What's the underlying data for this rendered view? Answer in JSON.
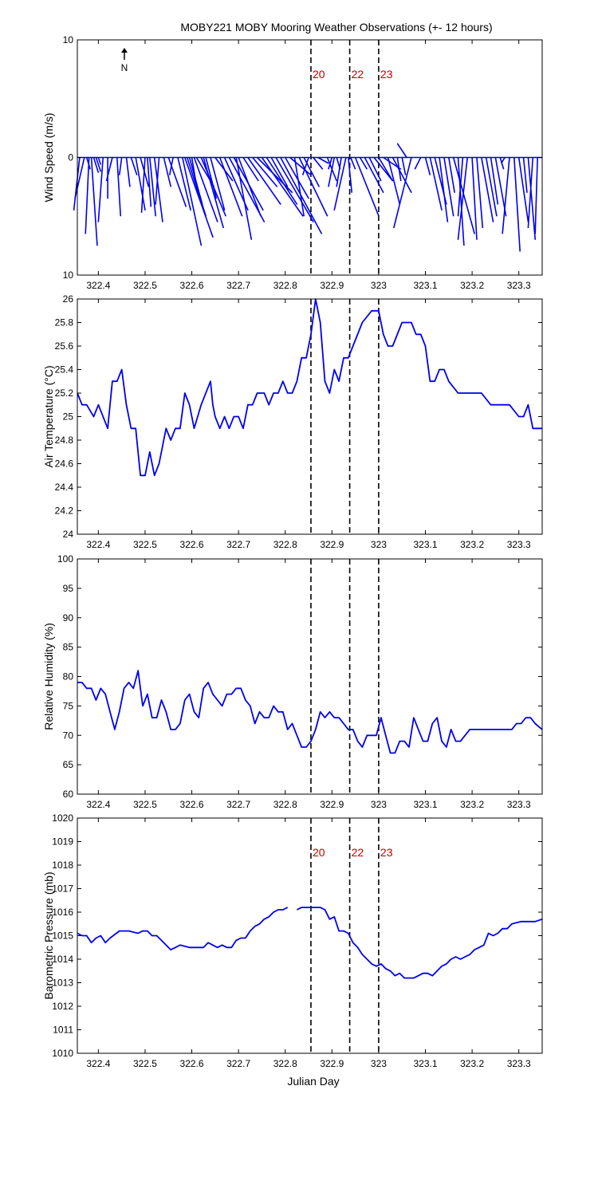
{
  "title": "MOBY221 MOBY Mooring Weather Observations (+- 12 hours)",
  "north_label": "N",
  "xlabel": "Julian Day",
  "colors": {
    "series": "#0000ee",
    "marker_text": "#cc0000",
    "axes": "#000000"
  },
  "xlim": [
    322.355,
    323.35
  ],
  "x_ticks": [
    322.4,
    322.5,
    322.6,
    322.7,
    322.8,
    322.9,
    323,
    323.1,
    323.2,
    323.3
  ],
  "x_tick_labels": [
    "322.4",
    "322.5",
    "322.6",
    "322.7",
    "322.8",
    "322.9",
    "323",
    "323.1",
    "323.2",
    "323.3"
  ],
  "markers": [
    {
      "x": 322.855,
      "label": "20"
    },
    {
      "x": 322.938,
      "label": "22"
    },
    {
      "x": 323.0,
      "label": "23"
    }
  ],
  "chart_data": [
    {
      "type": "line",
      "variant": "wind-stick",
      "ylabel": "Wind Speed (m/s)",
      "ylim": [
        -10,
        10
      ],
      "y_ticks": [
        -10,
        0,
        10
      ],
      "y_tick_labels": [
        "10",
        "0",
        "10"
      ],
      "show_markers": true,
      "x": [
        322.36,
        322.37,
        322.375,
        322.38,
        322.385,
        322.39,
        322.395,
        322.4,
        322.41,
        322.42,
        322.43,
        322.44,
        322.45,
        322.46,
        322.47,
        322.48,
        322.49,
        322.5,
        322.505,
        322.51,
        322.52,
        322.53,
        322.54,
        322.55,
        322.56,
        322.57,
        322.58,
        322.585,
        322.59,
        322.595,
        322.6,
        322.605,
        322.61,
        322.62,
        322.625,
        322.63,
        322.64,
        322.65,
        322.66,
        322.67,
        322.68,
        322.69,
        322.695,
        322.7,
        322.71,
        322.72,
        322.73,
        322.74,
        322.75,
        322.76,
        322.77,
        322.78,
        322.79,
        322.8,
        322.81,
        322.82,
        322.83,
        322.84,
        322.85,
        322.86,
        322.87,
        322.89,
        322.9,
        322.905,
        322.91,
        322.92,
        322.93,
        322.935,
        322.94,
        322.95,
        322.96,
        322.97,
        322.98,
        322.99,
        323.0,
        323.01,
        323.02,
        323.03,
        323.04,
        323.05,
        323.06,
        323.07,
        323.09,
        323.1,
        323.11,
        323.12,
        323.13,
        323.14,
        323.15,
        323.16,
        323.17,
        323.18,
        323.19,
        323.2,
        323.21,
        323.22,
        323.23,
        323.24,
        323.25,
        323.26,
        323.27,
        323.28,
        323.29,
        323.3,
        323.31,
        323.32,
        323.33,
        323.34
      ],
      "u": [
        -0.5,
        -0.8,
        0.3,
        -0.3,
        0.5,
        0.4,
        0.4,
        0.2,
        -0.4,
        0.0,
        -0.5,
        0.3,
        -0.2,
        0.3,
        0.5,
        0.8,
        0.7,
        -0.3,
        0.3,
        0.5,
        0.7,
        -0.3,
        0.6,
        1.5,
        -0.3,
        1.1,
        1.6,
        2.4,
        1.6,
        1.1,
        0.5,
        2.0,
        1.5,
        2.1,
        1.7,
        0.9,
        1.2,
        1.5,
        1.9,
        2.0,
        3.0,
        2.5,
        1.3,
        1.9,
        1.3,
        2.8,
        2.1,
        3.0,
        3.5,
        2.6,
        1.4,
        3.2,
        3.5,
        2.0,
        1.8,
        0.8,
        2.4,
        1.3,
        -0.5,
        0.8,
        0.9,
        0.8,
        -0.3,
        -0.5,
        0.3,
        -0.4,
        -1.0,
        0.3,
        0.4,
        2.0,
        0.6,
        1.6,
        1.0,
        1.6,
        1.2,
        1.5,
        1.0,
        1.6,
        0.3,
        0.3,
        -0.8,
        -1.5,
        -0.5,
        0.4,
        1.0,
        1.0,
        0.7,
        0.8,
        0.5,
        1.8,
        0.5,
        -0.4,
        -0.8,
        0.4,
        0.5,
        1.0,
        0.9,
        0.6,
        0.9,
        0.3,
        -0.3,
        -0.6,
        0.5,
        0.8,
        0.3,
        0.6,
        -0.4,
        -0.2
      ],
      "v": [
        -4.5,
        -3.5,
        -1.0,
        -6.5,
        -7.5,
        -1.3,
        -1.2,
        -0.6,
        -5.5,
        -3.5,
        -2.0,
        -5.0,
        -1.5,
        -2.5,
        -1.5,
        -4.5,
        -2.5,
        -4.7,
        -4.2,
        -5.0,
        -5.5,
        -4.0,
        -2.5,
        -4.2,
        -1.5,
        -4.5,
        -7.5,
        -6.8,
        -5.0,
        -4.0,
        -3.0,
        -5.5,
        -2.5,
        -5.0,
        -6.0,
        -3.5,
        -4.5,
        -2.0,
        -5.0,
        -4.5,
        -5.5,
        -4.5,
        -7.0,
        -5.0,
        -2.0,
        -4.0,
        -2.5,
        -3.0,
        -5.0,
        -4.0,
        -2.5,
        -5.5,
        -6.5,
        -3.5,
        -1.5,
        -5.0,
        -5.0,
        -2.5,
        -1.5,
        -1.0,
        -0.5,
        -2.0,
        -1.0,
        -2.5,
        -1.0,
        -2.5,
        -4.5,
        -3.0,
        -1.0,
        -5.0,
        -1.0,
        -3.0,
        -2.0,
        -2.0,
        -2.0,
        -1.0,
        -4.0,
        -3.0,
        -2.0,
        -1.5,
        1.2,
        -6.0,
        -1.0,
        -1.5,
        -4.5,
        -4.0,
        -5.5,
        -5.0,
        -3.0,
        -6.5,
        -7.5,
        -5.0,
        -7.0,
        -7.0,
        -6.0,
        -5.5,
        -5.0,
        -4.0,
        -5.0,
        -1.0,
        -0.5,
        -6.5,
        -8.0,
        -5.5,
        -3.0,
        -7.0,
        -6.0,
        -6.5
      ]
    },
    {
      "type": "line",
      "ylabel": "Air Temperature (°C)",
      "ylim": [
        24,
        26
      ],
      "y_ticks": [
        24,
        24.2,
        24.4,
        24.6,
        24.8,
        25,
        25.2,
        25.4,
        25.6,
        25.8,
        26
      ],
      "y_tick_labels": [
        "24",
        "24.2",
        "24.4",
        "24.6",
        "24.8",
        "25",
        "25.2",
        "25.4",
        "25.6",
        "25.8",
        "26"
      ],
      "show_markers": false,
      "x": [
        322.355,
        322.365,
        322.375,
        322.39,
        322.4,
        322.42,
        322.43,
        322.44,
        322.45,
        322.46,
        322.47,
        322.48,
        322.49,
        322.5,
        322.51,
        322.52,
        322.53,
        322.545,
        322.555,
        322.565,
        322.575,
        322.585,
        322.595,
        322.605,
        322.62,
        322.64,
        322.645,
        322.65,
        322.66,
        322.67,
        322.68,
        322.69,
        322.7,
        322.71,
        322.72,
        322.73,
        322.74,
        322.755,
        322.765,
        322.775,
        322.785,
        322.795,
        322.805,
        322.815,
        322.825,
        322.835,
        322.845,
        322.855,
        322.865,
        322.875,
        322.885,
        322.895,
        322.905,
        322.915,
        322.925,
        322.935,
        322.945,
        322.965,
        322.985,
        323.0,
        323.01,
        323.02,
        323.03,
        323.05,
        323.07,
        323.08,
        323.09,
        323.1,
        323.11,
        323.12,
        323.13,
        323.14,
        323.15,
        323.17,
        323.19,
        323.21,
        323.22,
        323.24,
        323.26,
        323.28,
        323.3,
        323.31,
        323.32,
        323.33,
        323.34,
        323.35
      ],
      "y": [
        25.2,
        25.1,
        25.1,
        25.0,
        25.1,
        24.9,
        25.3,
        25.3,
        25.4,
        25.1,
        24.9,
        24.9,
        24.5,
        24.5,
        24.7,
        24.5,
        24.6,
        24.9,
        24.8,
        24.9,
        24.9,
        25.2,
        25.1,
        24.9,
        25.1,
        25.3,
        25.1,
        25.0,
        24.9,
        25.0,
        24.9,
        25.0,
        25.0,
        24.9,
        25.1,
        25.1,
        25.2,
        25.2,
        25.1,
        25.2,
        25.2,
        25.3,
        25.2,
        25.2,
        25.3,
        25.5,
        25.5,
        25.7,
        26.0,
        25.8,
        25.3,
        25.2,
        25.4,
        25.3,
        25.5,
        25.5,
        25.6,
        25.8,
        25.9,
        25.9,
        25.7,
        25.6,
        25.6,
        25.8,
        25.8,
        25.7,
        25.7,
        25.6,
        25.3,
        25.3,
        25.4,
        25.4,
        25.3,
        25.2,
        25.2,
        25.2,
        25.2,
        25.1,
        25.1,
        25.1,
        25.0,
        25.0,
        25.1,
        24.9,
        24.9,
        24.9
      ]
    },
    {
      "type": "line",
      "ylabel": "Relative Humidity (%)",
      "ylim": [
        60,
        100
      ],
      "y_ticks": [
        60,
        65,
        70,
        75,
        80,
        85,
        90,
        95,
        100
      ],
      "y_tick_labels": [
        "60",
        "65",
        "70",
        "75",
        "80",
        "85",
        "90",
        "95",
        "100"
      ],
      "show_markers": false,
      "x": [
        322.355,
        322.365,
        322.375,
        322.385,
        322.395,
        322.405,
        322.415,
        322.425,
        322.435,
        322.445,
        322.455,
        322.465,
        322.475,
        322.485,
        322.495,
        322.505,
        322.515,
        322.525,
        322.535,
        322.545,
        322.555,
        322.565,
        322.575,
        322.585,
        322.595,
        322.605,
        322.615,
        322.625,
        322.635,
        322.645,
        322.655,
        322.665,
        322.675,
        322.685,
        322.695,
        322.705,
        322.715,
        322.725,
        322.735,
        322.745,
        322.755,
        322.765,
        322.775,
        322.785,
        322.795,
        322.805,
        322.815,
        322.825,
        322.835,
        322.845,
        322.855,
        322.865,
        322.875,
        322.885,
        322.895,
        322.905,
        322.915,
        322.925,
        322.935,
        322.945,
        322.955,
        322.965,
        322.975,
        322.985,
        322.995,
        323.005,
        323.015,
        323.025,
        323.035,
        323.045,
        323.055,
        323.065,
        323.075,
        323.085,
        323.095,
        323.105,
        323.115,
        323.125,
        323.135,
        323.145,
        323.155,
        323.165,
        323.175,
        323.185,
        323.195,
        323.205,
        323.225,
        323.245,
        323.265,
        323.285,
        323.295,
        323.305,
        323.315,
        323.325,
        323.335,
        323.35
      ],
      "y": [
        79,
        79,
        78,
        78,
        76,
        78,
        77,
        74,
        71,
        74,
        78,
        79,
        78,
        81,
        75,
        77,
        73,
        73,
        76,
        74,
        71,
        71,
        72,
        76,
        77,
        74,
        73,
        78,
        79,
        77,
        76,
        75,
        77,
        77,
        78,
        78,
        76,
        75,
        72,
        74,
        73,
        73,
        75,
        74,
        74,
        71,
        72,
        70,
        68,
        68,
        69,
        71,
        74,
        73,
        74,
        73,
        73,
        72,
        71,
        71,
        69,
        68,
        70,
        70,
        70,
        73,
        70,
        67,
        67,
        69,
        69,
        68,
        73,
        71,
        69,
        69,
        72,
        73,
        69,
        68,
        71,
        69,
        69,
        70,
        71,
        71,
        71,
        71,
        71,
        71,
        72,
        72,
        73,
        73,
        72,
        71
      ]
    },
    {
      "type": "line",
      "ylabel": "Barometric Pressure (mb)",
      "ylim": [
        1010,
        1020
      ],
      "y_ticks": [
        1010,
        1011,
        1012,
        1013,
        1014,
        1015,
        1016,
        1017,
        1018,
        1019,
        1020
      ],
      "y_tick_labels": [
        "1010",
        "1011",
        "1012",
        "1013",
        "1014",
        "1015",
        "1016",
        "1017",
        "1018",
        "1019",
        "1020"
      ],
      "show_markers": true,
      "x": [
        322.355,
        322.365,
        322.375,
        322.385,
        322.395,
        322.405,
        322.415,
        322.425,
        322.445,
        322.465,
        322.485,
        322.495,
        322.505,
        322.515,
        322.525,
        322.535,
        322.555,
        322.565,
        322.575,
        322.595,
        322.605,
        322.615,
        322.625,
        322.635,
        322.645,
        322.655,
        322.665,
        322.675,
        322.685,
        322.695,
        322.705,
        322.715,
        322.725,
        322.735,
        322.745,
        322.755,
        322.765,
        322.775,
        322.785,
        322.795,
        322.805,
        null,
        322.825,
        322.835,
        322.845,
        322.855,
        322.865,
        322.875,
        322.885,
        322.895,
        322.905,
        322.915,
        322.925,
        322.935,
        322.945,
        322.955,
        322.965,
        322.975,
        322.985,
        322.995,
        323.005,
        323.015,
        323.025,
        323.035,
        323.045,
        323.055,
        323.065,
        323.075,
        323.085,
        323.095,
        323.105,
        323.115,
        323.125,
        323.135,
        323.145,
        323.155,
        323.165,
        323.175,
        323.185,
        323.195,
        323.205,
        323.215,
        323.225,
        323.235,
        323.245,
        323.255,
        323.265,
        323.275,
        323.285,
        323.305,
        323.315,
        323.335,
        323.35
      ],
      "y": [
        1015.1,
        1015.0,
        1015.0,
        1014.7,
        1014.9,
        1015.0,
        1014.7,
        1014.9,
        1015.2,
        1015.2,
        1015.1,
        1015.2,
        1015.2,
        1015.0,
        1015.0,
        1014.8,
        1014.4,
        1014.5,
        1014.6,
        1014.5,
        1014.5,
        1014.5,
        1014.5,
        1014.7,
        1014.6,
        1014.5,
        1014.6,
        1014.5,
        1014.5,
        1014.8,
        1014.9,
        1014.9,
        1015.2,
        1015.4,
        1015.5,
        1015.7,
        1015.8,
        1016.0,
        1016.1,
        1016.1,
        1016.2,
        null,
        1016.1,
        1016.2,
        1016.2,
        1016.2,
        1016.2,
        1016.2,
        1016.1,
        1015.7,
        1015.8,
        1015.2,
        1015.2,
        1015.1,
        1014.7,
        1014.5,
        1014.2,
        1014.0,
        1013.8,
        1013.7,
        1013.8,
        1013.6,
        1013.5,
        1013.3,
        1013.4,
        1013.2,
        1013.2,
        1013.2,
        1013.3,
        1013.4,
        1013.4,
        1013.3,
        1013.5,
        1013.7,
        1013.8,
        1014.0,
        1014.1,
        1014.0,
        1014.1,
        1014.2,
        1014.4,
        1014.5,
        1014.6,
        1015.1,
        1015.0,
        1015.1,
        1015.3,
        1015.3,
        1015.5,
        1015.6,
        1015.6,
        1015.6,
        1015.7
      ]
    }
  ]
}
